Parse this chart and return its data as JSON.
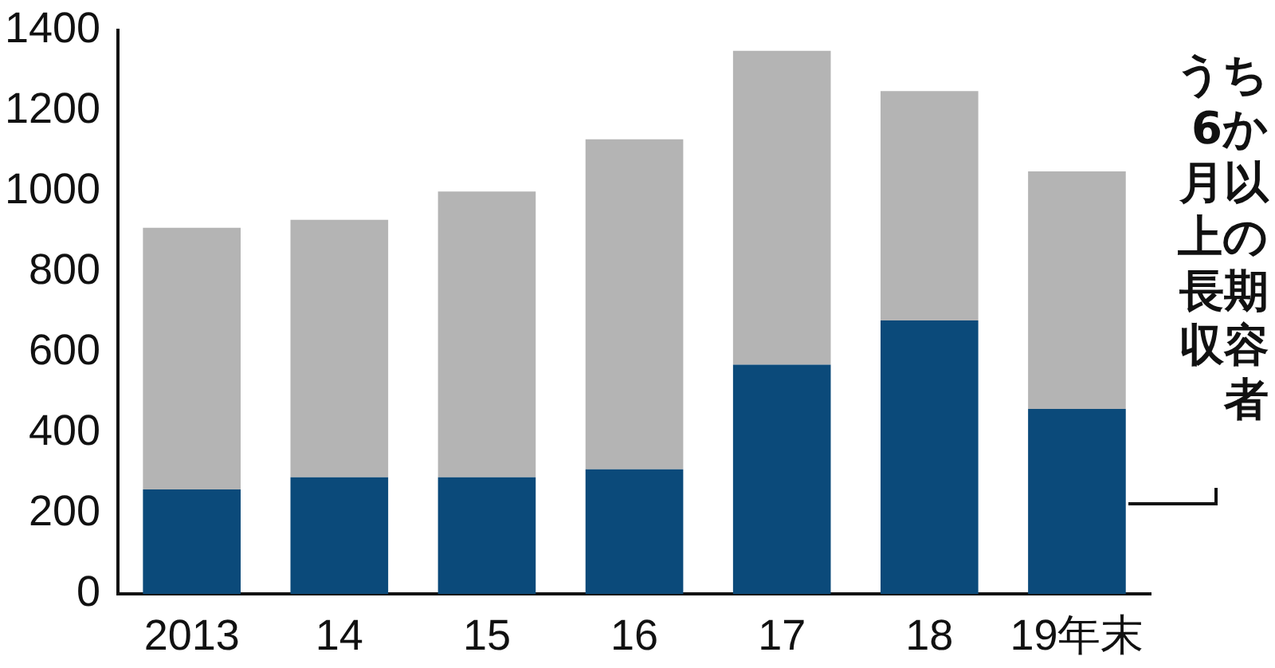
{
  "chart_data": {
    "type": "bar",
    "stacked": true,
    "categories": [
      "2013",
      "14",
      "15",
      "16",
      "17",
      "18",
      "19年末"
    ],
    "series": [
      {
        "name": "うち6か月以上の長期収容者",
        "color": "#0b4a7a",
        "values": [
          260,
          290,
          290,
          310,
          570,
          680,
          460
        ]
      },
      {
        "color": "#b4b4b4",
        "values": [
          650,
          640,
          710,
          820,
          780,
          570,
          590
        ]
      }
    ],
    "ylim": [
      0,
      1400
    ],
    "yticks": [
      0,
      200,
      400,
      600,
      800,
      1000,
      1200,
      1400
    ],
    "grid": false,
    "legend": false
  }
}
